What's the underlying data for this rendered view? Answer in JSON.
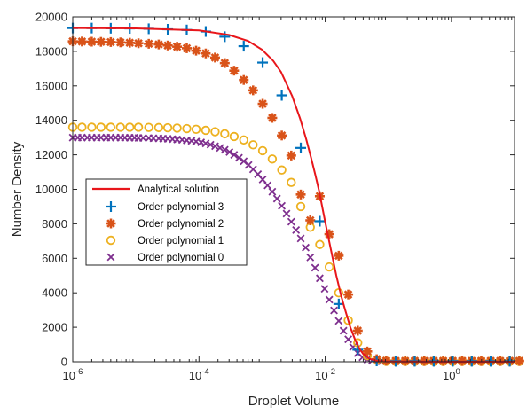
{
  "chart_data": {
    "type": "line",
    "title": "",
    "xlabel": "Droplet Volume",
    "ylabel": "Number Density",
    "xscale": "log",
    "xlim": [
      1e-06,
      10
    ],
    "ylim": [
      0,
      20000
    ],
    "x_ticks": [
      1e-06,
      0.0001,
      0.01,
      1
    ],
    "x_tick_labels": [
      {
        "base": "10",
        "exp": "-6"
      },
      {
        "base": "10",
        "exp": "-4"
      },
      {
        "base": "10",
        "exp": "-2"
      },
      {
        "base": "10",
        "exp": "0"
      }
    ],
    "y_ticks": [
      0,
      2000,
      4000,
      6000,
      8000,
      10000,
      12000,
      14000,
      16000,
      18000,
      20000
    ],
    "y_tick_labels": [
      "0",
      "2000",
      "4000",
      "6000",
      "8000",
      "10000",
      "12000",
      "14000",
      "16000",
      "18000",
      "20000"
    ],
    "grid": false,
    "legend_position": "middle-left",
    "series": [
      {
        "name": "Analytical solution",
        "style": "line",
        "color": "#e8161b",
        "x": [
          1e-06,
          1e-05,
          0.0001,
          0.0003,
          0.0006,
          0.001,
          0.0015,
          0.002,
          0.003,
          0.004,
          0.005,
          0.006,
          0.007,
          0.008,
          0.01,
          0.012,
          0.015,
          0.018,
          0.02,
          0.025,
          0.03,
          0.035,
          0.04,
          0.05,
          0.06,
          0.08,
          0.1,
          0.2,
          1,
          10
        ],
        "y": [
          19350,
          19330,
          19220,
          18950,
          18600,
          18100,
          17450,
          16800,
          15400,
          14100,
          12900,
          11800,
          10800,
          9900,
          8100,
          6700,
          5000,
          3800,
          3200,
          2000,
          1250,
          750,
          450,
          180,
          80,
          30,
          15,
          5,
          0,
          0
        ]
      },
      {
        "name": "Order polynomial 3",
        "style": "marker",
        "marker": "plus",
        "color": "#0072bd",
        "x": [
          1e-06,
          2e-06,
          4e-06,
          8e-06,
          1.6e-05,
          3.2e-05,
          6.4e-05,
          0.000128,
          0.000256,
          0.000512,
          0.00102,
          0.00205,
          0.0041,
          0.0082,
          0.0164,
          0.0328,
          0.0655,
          0.131,
          0.262,
          0.524,
          1.05,
          2.1,
          4.19,
          8.39
        ],
        "y": [
          19350,
          19350,
          19340,
          19330,
          19310,
          19280,
          19240,
          19150,
          18850,
          18300,
          17350,
          15450,
          12400,
          8150,
          3350,
          700,
          50,
          30,
          30,
          30,
          30,
          30,
          30,
          30
        ]
      },
      {
        "name": "Order polynomial 2",
        "style": "marker",
        "marker": "asterisk",
        "color": "#d95319",
        "x": [
          1e-06,
          1.4e-06,
          2e-06,
          2.8e-06,
          4e-06,
          5.7e-06,
          8e-06,
          1.1e-05,
          1.6e-05,
          2.3e-05,
          3.2e-05,
          4.5e-05,
          6.4e-05,
          9e-05,
          0.000128,
          0.00018,
          0.000256,
          0.00036,
          0.000512,
          0.00072,
          0.00102,
          0.00145,
          0.00205,
          0.0029,
          0.0041,
          0.0058,
          0.0082,
          0.0116,
          0.0164,
          0.0232,
          0.0328,
          0.0464,
          0.0655,
          0.0927,
          0.131,
          0.185,
          0.262,
          0.371,
          0.524,
          0.741,
          1.05,
          1.48,
          2.1,
          2.97,
          4.19,
          5.93,
          8.39,
          11.9
        ],
        "y": [
          18580,
          18570,
          18560,
          18550,
          18540,
          18520,
          18500,
          18470,
          18440,
          18400,
          18340,
          18270,
          18180,
          18040,
          17880,
          17640,
          17320,
          16880,
          16340,
          15740,
          14960,
          14140,
          13120,
          11960,
          9700,
          8200,
          9600,
          7400,
          6150,
          3900,
          1800,
          600,
          150,
          60,
          50,
          50,
          50,
          50,
          50,
          50,
          50,
          50,
          50,
          50,
          50,
          50,
          50,
          50
        ]
      },
      {
        "name": "Order polynomial 1",
        "style": "marker",
        "marker": "circle",
        "color": "#edb120",
        "x": [
          1e-06,
          1.4e-06,
          2e-06,
          2.8e-06,
          4e-06,
          5.7e-06,
          8e-06,
          1.1e-05,
          1.6e-05,
          2.3e-05,
          3.2e-05,
          4.5e-05,
          6.4e-05,
          9e-05,
          0.000128,
          0.00018,
          0.000256,
          0.00036,
          0.000512,
          0.00072,
          0.00102,
          0.00145,
          0.00205,
          0.0029,
          0.0041,
          0.0058,
          0.0082,
          0.0116,
          0.0164,
          0.0232,
          0.0328,
          0.0464,
          0.0655,
          0.0927,
          0.131,
          0.185,
          0.262,
          0.371,
          0.524,
          0.741,
          1.05,
          1.48,
          2.1,
          2.97,
          4.19,
          5.93,
          8.39,
          11.9
        ],
        "y": [
          13600,
          13600,
          13600,
          13600,
          13600,
          13600,
          13600,
          13600,
          13590,
          13580,
          13570,
          13550,
          13520,
          13480,
          13420,
          13340,
          13220,
          13060,
          12860,
          12580,
          12240,
          11760,
          11120,
          10400,
          9000,
          7800,
          6800,
          5500,
          4000,
          2400,
          1100,
          350,
          100,
          30,
          20,
          20,
          20,
          20,
          20,
          20,
          20,
          20,
          20,
          20,
          20,
          20,
          20,
          20
        ]
      },
      {
        "name": "Order polynomial 0",
        "style": "marker",
        "marker": "x",
        "color": "#7e2f8e",
        "x": [
          1e-06,
          1.2e-06,
          1.4e-06,
          1.7e-06,
          2e-06,
          2.4e-06,
          2.8e-06,
          3.4e-06,
          4e-06,
          4.8e-06,
          5.7e-06,
          6.7e-06,
          8e-06,
          9.5e-06,
          1.1e-05,
          1.3e-05,
          1.6e-05,
          1.9e-05,
          2.3e-05,
          2.7e-05,
          3.2e-05,
          3.8e-05,
          4.5e-05,
          5.4e-05,
          6.4e-05,
          7.6e-05,
          9e-05,
          0.000108,
          0.000128,
          0.000152,
          0.00018,
          0.000215,
          0.000256,
          0.000304,
          0.00036,
          0.00043,
          0.000512,
          0.00061,
          0.00072,
          0.00086,
          0.00102,
          0.00122,
          0.00145,
          0.00172,
          0.00205,
          0.00244,
          0.0029,
          0.00345,
          0.0041,
          0.0049,
          0.0058,
          0.0069,
          0.0082,
          0.0098,
          0.0116,
          0.0138,
          0.0164,
          0.0195,
          0.0232,
          0.0276,
          0.0328,
          0.039,
          0.0464,
          0.0552,
          0.0655,
          0.078,
          0.0927,
          0.11,
          0.131,
          0.156,
          0.185,
          0.22,
          0.262,
          0.311,
          0.371,
          0.44,
          0.524,
          0.623,
          0.741,
          0.88,
          1.05,
          1.25,
          1.48,
          1.76,
          2.1,
          2.5,
          2.97,
          3.53,
          4.19,
          4.99,
          5.93,
          7.05,
          8.39,
          9.98,
          11.9
        ],
        "y": [
          13000,
          13000,
          13000,
          13000,
          13000,
          13000,
          13000,
          13000,
          13000,
          13000,
          13000,
          12990,
          12990,
          12990,
          12980,
          12980,
          12970,
          12960,
          12950,
          12940,
          12930,
          12910,
          12890,
          12870,
          12840,
          12810,
          12770,
          12720,
          12660,
          12590,
          12500,
          12400,
          12290,
          12160,
          12000,
          11830,
          11630,
          11410,
          11160,
          10880,
          10570,
          10230,
          9860,
          9460,
          9040,
          8590,
          8120,
          7640,
          7150,
          6620,
          6050,
          5450,
          4840,
          4230,
          3600,
          2980,
          2370,
          1800,
          1300,
          850,
          500,
          260,
          130,
          60,
          40,
          30,
          30,
          30,
          30,
          30,
          30,
          30,
          30,
          30,
          30,
          30,
          30,
          30,
          30,
          30,
          30,
          30,
          30,
          30,
          30,
          30,
          30,
          30,
          30,
          30,
          30,
          30,
          30,
          30,
          30
        ]
      }
    ]
  }
}
